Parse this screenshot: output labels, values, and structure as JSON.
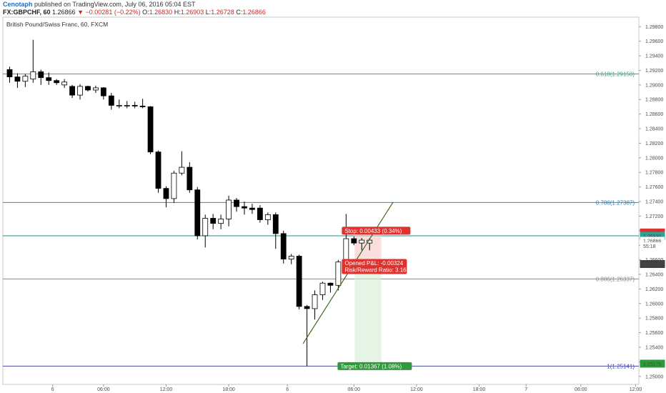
{
  "header": {
    "author": "Cenotaph",
    "published": "published on TradingView.com, July 06, 2016 05:04 EST",
    "symbol": "FX:GBPCHF, 60",
    "last": "1.26866",
    "change": "−0.00281 (−0.22%)",
    "o_label": "O:",
    "o": "1.26830",
    "h_label": "H:",
    "h": "1.26903",
    "l_label": "L:",
    "l": "1.26728",
    "c_label": "C:",
    "c": "1.26866"
  },
  "chart_data": {
    "type": "candlestick",
    "title": "British Pound/Swiss Franc, 60, FXCM",
    "x_tick_labels": [
      "6",
      "06:00",
      "12:00",
      "18:00",
      "6",
      "06:00",
      "12:00",
      "18:00",
      "7",
      "06:00",
      "12:00"
    ],
    "y_tick_labels": [
      "1.29800",
      "1.29600",
      "1.29400",
      "1.29200",
      "1.29000",
      "1.28800",
      "1.28600",
      "1.28400",
      "1.28200",
      "1.28000",
      "1.27800",
      "1.27600",
      "1.27400",
      "1.27200",
      "1.27000",
      "1.26800",
      "1.26600",
      "1.26400",
      "1.26200",
      "1.26000",
      "1.25800",
      "1.25600",
      "1.25400",
      "1.25200",
      "1.25000"
    ],
    "ylim": [
      1.2489,
      1.2993
    ],
    "candles": [
      {
        "o": 1.2921,
        "h": 1.2925,
        "l": 1.2903,
        "c": 1.2911
      },
      {
        "o": 1.2911,
        "h": 1.2916,
        "l": 1.2896,
        "c": 1.2905
      },
      {
        "o": 1.2905,
        "h": 1.2915,
        "l": 1.2897,
        "c": 1.2912
      },
      {
        "o": 1.2908,
        "h": 1.2962,
        "l": 1.2903,
        "c": 1.2918
      },
      {
        "o": 1.2918,
        "h": 1.2921,
        "l": 1.29,
        "c": 1.291
      },
      {
        "o": 1.291,
        "h": 1.2917,
        "l": 1.29,
        "c": 1.2906
      },
      {
        "o": 1.2906,
        "h": 1.2908,
        "l": 1.29,
        "c": 1.2903
      },
      {
        "o": 1.29,
        "h": 1.2908,
        "l": 1.2896,
        "c": 1.2904
      },
      {
        "o": 1.2898,
        "h": 1.29,
        "l": 1.2882,
        "c": 1.2886
      },
      {
        "o": 1.2886,
        "h": 1.2901,
        "l": 1.288,
        "c": 1.2898
      },
      {
        "o": 1.2898,
        "h": 1.2899,
        "l": 1.2891,
        "c": 1.2893
      },
      {
        "o": 1.2893,
        "h": 1.2899,
        "l": 1.2889,
        "c": 1.2896
      },
      {
        "o": 1.2896,
        "h": 1.2897,
        "l": 1.288,
        "c": 1.2885
      },
      {
        "o": 1.2885,
        "h": 1.2889,
        "l": 1.2866,
        "c": 1.2872
      },
      {
        "o": 1.2872,
        "h": 1.288,
        "l": 1.2868,
        "c": 1.2872
      },
      {
        "o": 1.2872,
        "h": 1.2878,
        "l": 1.2868,
        "c": 1.2872
      },
      {
        "o": 1.2872,
        "h": 1.2877,
        "l": 1.2868,
        "c": 1.2871
      },
      {
        "o": 1.2871,
        "h": 1.2881,
        "l": 1.2868,
        "c": 1.287
      },
      {
        "o": 1.287,
        "h": 1.2871,
        "l": 1.2805,
        "c": 1.2808
      },
      {
        "o": 1.2808,
        "h": 1.281,
        "l": 1.2752,
        "c": 1.2758
      },
      {
        "o": 1.2758,
        "h": 1.2761,
        "l": 1.2732,
        "c": 1.2744
      },
      {
        "o": 1.2744,
        "h": 1.2782,
        "l": 1.2738,
        "c": 1.2779
      },
      {
        "o": 1.2779,
        "h": 1.2809,
        "l": 1.2776,
        "c": 1.2787
      },
      {
        "o": 1.2787,
        "h": 1.2794,
        "l": 1.2752,
        "c": 1.2756
      },
      {
        "o": 1.2756,
        "h": 1.276,
        "l": 1.2688,
        "c": 1.2693
      },
      {
        "o": 1.2693,
        "h": 1.2722,
        "l": 1.2677,
        "c": 1.2717
      },
      {
        "o": 1.2717,
        "h": 1.2723,
        "l": 1.2702,
        "c": 1.271
      },
      {
        "o": 1.271,
        "h": 1.2722,
        "l": 1.2702,
        "c": 1.2716
      },
      {
        "o": 1.2716,
        "h": 1.2748,
        "l": 1.2706,
        "c": 1.2742
      },
      {
        "o": 1.2742,
        "h": 1.2745,
        "l": 1.2726,
        "c": 1.2733
      },
      {
        "o": 1.2733,
        "h": 1.274,
        "l": 1.2722,
        "c": 1.2731
      },
      {
        "o": 1.2731,
        "h": 1.2737,
        "l": 1.2723,
        "c": 1.2729
      },
      {
        "o": 1.2731,
        "h": 1.2735,
        "l": 1.2711,
        "c": 1.2715
      },
      {
        "o": 1.2715,
        "h": 1.2725,
        "l": 1.2708,
        "c": 1.2722
      },
      {
        "o": 1.2722,
        "h": 1.2725,
        "l": 1.2675,
        "c": 1.2696
      },
      {
        "o": 1.2696,
        "h": 1.27,
        "l": 1.2655,
        "c": 1.2661
      },
      {
        "o": 1.2661,
        "h": 1.2668,
        "l": 1.2654,
        "c": 1.2665
      },
      {
        "o": 1.2665,
        "h": 1.2667,
        "l": 1.2592,
        "c": 1.2596
      },
      {
        "o": 1.2596,
        "h": 1.2598,
        "l": 1.2514,
        "c": 1.2593
      },
      {
        "o": 1.2593,
        "h": 1.2618,
        "l": 1.2578,
        "c": 1.2612
      },
      {
        "o": 1.2612,
        "h": 1.263,
        "l": 1.2605,
        "c": 1.2628
      },
      {
        "o": 1.2628,
        "h": 1.2629,
        "l": 1.2615,
        "c": 1.2625
      },
      {
        "o": 1.2625,
        "h": 1.266,
        "l": 1.2618,
        "c": 1.2657
      },
      {
        "o": 1.2657,
        "h": 1.2723,
        "l": 1.2652,
        "c": 1.2689
      },
      {
        "o": 1.2689,
        "h": 1.2692,
        "l": 1.268,
        "c": 1.2683
      },
      {
        "o": 1.2683,
        "h": 1.269,
        "l": 1.2673,
        "c": 1.2687
      },
      {
        "o": 1.2683,
        "h": 1.269,
        "l": 1.2673,
        "c": 1.2687
      }
    ],
    "fib_levels": [
      {
        "label": "0.618(1.29150)",
        "value": 1.2915,
        "color": "#3aa882"
      },
      {
        "label": "0.786(1.27387)",
        "value": 1.27387,
        "color": "#2a86b8"
      },
      {
        "label": "0.886(1.26337)",
        "value": 1.26337,
        "color": "#8a8a8a"
      },
      {
        "label": "1(1.25141)",
        "value": 1.25141,
        "color": "#4a4aa8"
      }
    ],
    "horizontal_line": {
      "value": 1.2693,
      "color": "#1e8f8f"
    },
    "trendline": {
      "from": {
        "bar": 38,
        "price": 1.2545
      },
      "to": {
        "bar": 49.5,
        "price": 1.2739
      },
      "color": "#3e6b1e"
    },
    "position": {
      "entry": 1.26542,
      "stop": 1.26975,
      "target": 1.25175,
      "start_bar": 44.6,
      "end_bar": 48.0,
      "stop_label": "Stop: 0.00433 (0.34%)",
      "pl_label": "Opened P&L: -0.00324",
      "rr_label": "Risk/Reward Ratio: 3.16",
      "target_label": "Target: 0.01367 (1.08%)"
    },
    "price_labels": [
      {
        "text": "1.26975",
        "value": 1.26975,
        "bg": "#e0312e",
        "fg": "#ffffff"
      },
      {
        "text": "1.26930",
        "value": 1.2693,
        "bg": "#2aa59a",
        "fg": "#ffffff"
      },
      {
        "text": "1.26866",
        "value": 1.26866,
        "bg": "#ffffff",
        "fg": "#222222"
      },
      {
        "text": "55:18",
        "value": 1.26791,
        "bg": "#ffffff",
        "fg": "#222222"
      },
      {
        "text": "1.26542",
        "value": 1.26542,
        "bg": "#404040",
        "fg": "#ffffff"
      },
      {
        "text": "1.25175",
        "value": 1.25175,
        "bg": "#2e9a3a",
        "fg": "#ffffff"
      }
    ]
  }
}
